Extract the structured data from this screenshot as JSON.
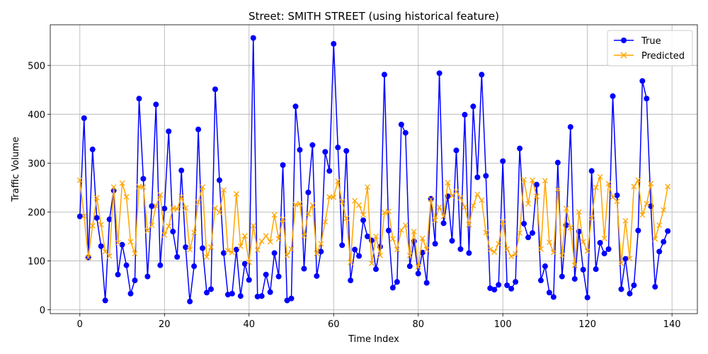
{
  "chart_data": {
    "type": "line",
    "title": "Street: SMITH STREET (using historical feature)",
    "xlabel": "Time Index",
    "ylabel": "Traffic Volume",
    "xlim": [
      -7,
      146
    ],
    "ylim": [
      -8,
      583
    ],
    "xticks": [
      0,
      20,
      40,
      60,
      80,
      100,
      120,
      140
    ],
    "yticks": [
      0,
      100,
      200,
      300,
      400,
      500
    ],
    "grid": true,
    "legend_position": "top-right",
    "series": [
      {
        "name": "True",
        "color": "#0000ff",
        "marker": "circle",
        "values": [
          191,
          392,
          107,
          328,
          188,
          130,
          19,
          185,
          244,
          72,
          133,
          91,
          33,
          60,
          432,
          268,
          68,
          212,
          420,
          91,
          207,
          365,
          160,
          108,
          285,
          128,
          17,
          89,
          369,
          126,
          35,
          42,
          451,
          265,
          116,
          31,
          33,
          123,
          28,
          94,
          61,
          556,
          27,
          28,
          72,
          36,
          116,
          68,
          296,
          19,
          23,
          416,
          327,
          84,
          240,
          337,
          69,
          119,
          323,
          284,
          544,
          332,
          132,
          325,
          60,
          123,
          110,
          183,
          150,
          142,
          83,
          129,
          481,
          162,
          45,
          57,
          379,
          362,
          89,
          140,
          74,
          117,
          55,
          227,
          135,
          484,
          177,
          232,
          141,
          326,
          124,
          399,
          116,
          416,
          271,
          481,
          274,
          44,
          41,
          51,
          304,
          50,
          43,
          57,
          330,
          176,
          148,
          157,
          256,
          60,
          89,
          35,
          26,
          301,
          68,
          173,
          374,
          63,
          160,
          82,
          25,
          284,
          83,
          137,
          115,
          124,
          437,
          234,
          42,
          104,
          33,
          50,
          162,
          468,
          432,
          212,
          47,
          119,
          139,
          161
        ]
      },
      {
        "name": "Predicted",
        "color": "#ffa500",
        "marker": "x",
        "values": [
          265,
          192,
          107,
          172,
          229,
          174,
          119,
          110,
          251,
          137,
          259,
          231,
          139,
          115,
          252,
          251,
          162,
          173,
          212,
          235,
          153,
          171,
          208,
          206,
          231,
          208,
          123,
          158,
          220,
          251,
          108,
          128,
          208,
          199,
          245,
          121,
          117,
          237,
          130,
          151,
          97,
          172,
          122,
          140,
          151,
          139,
          194,
          145,
          185,
          111,
          124,
          215,
          217,
          151,
          196,
          214,
          115,
          135,
          180,
          231,
          230,
          263,
          221,
          187,
          97,
          223,
          214,
          194,
          251,
          95,
          150,
          111,
          199,
          201,
          145,
          123,
          163,
          173,
          111,
          160,
          88,
          146,
          123,
          226,
          183,
          210,
          191,
          260,
          233,
          242,
          229,
          210,
          174,
          213,
          236,
          224,
          158,
          123,
          118,
          135,
          180,
          124,
          109,
          114,
          157,
          266,
          217,
          265,
          232,
          124,
          264,
          138,
          117,
          246,
          111,
          207,
          168,
          91,
          200,
          139,
          120,
          188,
          250,
          272,
          146,
          258,
          230,
          222,
          95,
          182,
          105,
          252,
          265,
          194,
          217,
          258,
          145,
          173,
          204,
          252
        ]
      }
    ]
  }
}
